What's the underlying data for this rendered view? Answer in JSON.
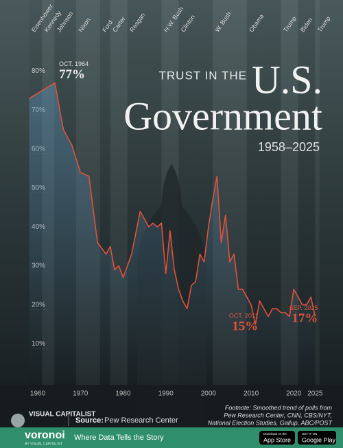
{
  "chart_data": {
    "type": "line",
    "title_small": "TRUST IN THE",
    "title_big": "U.S.",
    "title_main": "Government",
    "subtitle": "1958–2025",
    "x": [
      1958,
      1964,
      1966,
      1968,
      1970,
      1972,
      1974,
      1976,
      1977,
      1978,
      1979,
      1980,
      1982,
      1984,
      1985,
      1986,
      1987,
      1988,
      1989,
      1990,
      1991,
      1992,
      1993,
      1994,
      1995,
      1996,
      1997,
      1998,
      1999,
      2000,
      2001,
      2002,
      2003,
      2004,
      2005,
      2006,
      2007,
      2008,
      2009,
      2010,
      2011,
      2012,
      2013,
      2014,
      2015,
      2016,
      2017,
      2018,
      2019,
      2020,
      2021,
      2022,
      2023,
      2024,
      2025
    ],
    "values": [
      73,
      77,
      65,
      61,
      54,
      53,
      36,
      33,
      35,
      29,
      30,
      27,
      33,
      44,
      42,
      40,
      41,
      40,
      41,
      28,
      39,
      29,
      24,
      21,
      19,
      25,
      26,
      33,
      31,
      40,
      47,
      53,
      36,
      43,
      31,
      33,
      24,
      24,
      22,
      20,
      15,
      21,
      19,
      17,
      19,
      19,
      18,
      18,
      17,
      24,
      22,
      20,
      20,
      22,
      17
    ],
    "color": "#e0523a",
    "xlim": [
      1958,
      2026
    ],
    "xticks": [
      1960,
      1970,
      1980,
      1990,
      2000,
      2010,
      2020,
      2025
    ],
    "ylim": [
      0,
      80
    ],
    "yticks": [
      {
        "value": 10,
        "label": "10%"
      },
      {
        "value": 20,
        "label": "20%"
      },
      {
        "value": 30,
        "label": "30%"
      },
      {
        "value": 40,
        "label": "40%"
      },
      {
        "value": 50,
        "label": "50%"
      },
      {
        "value": 60,
        "label": "60%"
      },
      {
        "value": 70,
        "label": "70%"
      },
      {
        "value": 80,
        "label": "80%"
      }
    ],
    "presidents": [
      {
        "name": "Eisenhower",
        "start": 1958
      },
      {
        "name": "Kennedy",
        "start": 1961
      },
      {
        "name": "Johnson",
        "start": 1963.9
      },
      {
        "name": "Nixon",
        "start": 1969
      },
      {
        "name": "Ford",
        "start": 1974.6
      },
      {
        "name": "Carter",
        "start": 1977
      },
      {
        "name": "Reagan",
        "start": 1981
      },
      {
        "name": "H.W. Bush",
        "start": 1989
      },
      {
        "name": "Clinton",
        "start": 1993
      },
      {
        "name": "W. Bush",
        "start": 2001
      },
      {
        "name": "Obama",
        "start": 2009
      },
      {
        "name": "Trump",
        "start": 2017
      },
      {
        "name": "Biden",
        "start": 2021
      },
      {
        "name": "Trump",
        "start": 2025
      }
    ],
    "annotations": [
      {
        "date": "OCT. 1964",
        "x": 1964,
        "value": 77,
        "value_label": "77%"
      },
      {
        "date": "OCT. 2011",
        "x": 2011,
        "value": 15,
        "value_label": "15%"
      },
      {
        "date": "SEP. 2025",
        "x": 2025,
        "value": 17,
        "value_label": "17%"
      }
    ],
    "footnote": [
      "Footnote: Smoothed trend of polls from",
      "Pew Research Center, CNN, CBS/NYT,",
      "National Election Studies, Gallup, ABC/POST"
    ],
    "source_label": "Source:",
    "source": "Pew Research Center"
  },
  "footer": {
    "brand": "VISUAL CAPITALIST",
    "logo": "voronoi",
    "logo_sub": "BY VISUAL CAPITALIST",
    "tagline": "Where Data Tells the Story",
    "app_store": [
      "Download on the",
      "App Store"
    ],
    "google_play": [
      "GET IT ON",
      "Google Play"
    ]
  }
}
